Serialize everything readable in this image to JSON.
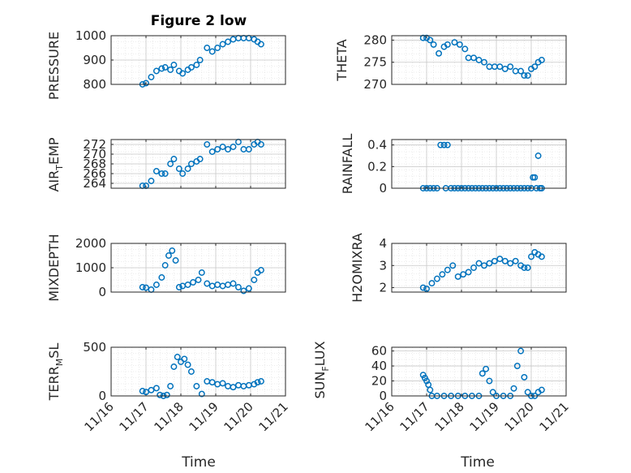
{
  "colors": {
    "marker": "#0072BD",
    "axes": "#262626",
    "grid": "#dcdcdc",
    "background": "#ffffff"
  },
  "chart_data": [
    {
      "type": "scatter",
      "title": "Figure 2 low",
      "ylabel": "PRESSURE",
      "xlabel": "",
      "xlim": [
        "11/16",
        "11/21"
      ],
      "ylim": [
        800,
        1000
      ],
      "yticks": [
        800,
        900,
        1000
      ],
      "ytick_labels": [
        "800",
        "900",
        "1000"
      ],
      "xtick_labels": [],
      "grid": true,
      "x": [
        0.9,
        1.0,
        1.15,
        1.3,
        1.45,
        1.55,
        1.7,
        1.8,
        1.95,
        2.05,
        2.2,
        2.3,
        2.45,
        2.55,
        2.75,
        2.9,
        3.05,
        3.2,
        3.35,
        3.5,
        3.65,
        3.8,
        3.95,
        4.1,
        4.2,
        4.3
      ],
      "series": [
        {
          "values": [
            800,
            805,
            830,
            855,
            865,
            870,
            860,
            880,
            855,
            845,
            860,
            870,
            880,
            900,
            950,
            935,
            950,
            965,
            975,
            985,
            990,
            990,
            990,
            985,
            975,
            965
          ]
        }
      ]
    },
    {
      "type": "scatter",
      "title": "",
      "ylabel": "THETA",
      "xlabel": "",
      "xlim": [
        "11/16",
        "11/21"
      ],
      "ylim": [
        270,
        281
      ],
      "yticks": [
        270,
        275,
        280
      ],
      "ytick_labels": [
        "270",
        "275",
        "280"
      ],
      "xtick_labels": [],
      "grid": true,
      "x": [
        0.9,
        1.0,
        1.1,
        1.2,
        1.35,
        1.5,
        1.6,
        1.8,
        1.95,
        2.1,
        2.2,
        2.35,
        2.5,
        2.65,
        2.8,
        2.95,
        3.1,
        3.25,
        3.4,
        3.55,
        3.7,
        3.8,
        3.9,
        4.0,
        4.1,
        4.2,
        4.3
      ],
      "series": [
        {
          "values": [
            280.5,
            280.5,
            280,
            279,
            277,
            278.5,
            279,
            279.5,
            279,
            278,
            276,
            276,
            275.5,
            275,
            274,
            274,
            274,
            273.5,
            274,
            273,
            273,
            272,
            272,
            273.5,
            274,
            275,
            275.5
          ]
        }
      ]
    },
    {
      "type": "scatter",
      "title": "",
      "ylabel": "AIR_TEMP",
      "xlabel": "",
      "xlim": [
        "11/16",
        "11/21"
      ],
      "ylim": [
        263,
        273
      ],
      "yticks": [
        264,
        266,
        268,
        270,
        272
      ],
      "ytick_labels": [
        "264",
        "266",
        "268",
        "270",
        "272"
      ],
      "xtick_labels": [],
      "grid": true,
      "x": [
        0.9,
        1.0,
        1.15,
        1.3,
        1.45,
        1.55,
        1.7,
        1.8,
        1.95,
        2.05,
        2.2,
        2.3,
        2.45,
        2.55,
        2.75,
        2.9,
        3.05,
        3.2,
        3.35,
        3.5,
        3.65,
        3.8,
        3.95,
        4.1,
        4.2,
        4.3
      ],
      "series": [
        {
          "values": [
            263.5,
            263.5,
            264.5,
            266.5,
            266,
            266,
            268,
            269,
            267,
            266,
            267,
            268,
            268.5,
            269,
            272,
            270.5,
            271,
            271.5,
            271,
            271.5,
            272.5,
            271,
            271,
            272,
            272.5,
            272
          ]
        }
      ]
    },
    {
      "type": "scatter",
      "title": "",
      "ylabel": "RAINFALL",
      "xlabel": "",
      "xlim": [
        "11/16",
        "11/21"
      ],
      "ylim": [
        0,
        0.45
      ],
      "yticks": [
        0,
        0.2,
        0.4
      ],
      "ytick_labels": [
        "0",
        "0.2",
        "0.4"
      ],
      "xtick_labels": [],
      "grid": true,
      "x": [
        0.9,
        1.0,
        1.1,
        1.2,
        1.3,
        1.4,
        1.5,
        1.55,
        1.6,
        1.7,
        1.8,
        1.9,
        2.0,
        2.1,
        2.2,
        2.3,
        2.4,
        2.5,
        2.6,
        2.7,
        2.8,
        2.9,
        3.0,
        3.1,
        3.2,
        3.3,
        3.4,
        3.5,
        3.6,
        3.7,
        3.8,
        3.9,
        4.0,
        4.05,
        4.1,
        4.15,
        4.2,
        4.25,
        4.3
      ],
      "series": [
        {
          "values": [
            0,
            0,
            0,
            0,
            0,
            0.4,
            0.4,
            0,
            0.4,
            0,
            0,
            0,
            0,
            0,
            0,
            0,
            0,
            0,
            0,
            0,
            0,
            0,
            0,
            0,
            0,
            0,
            0,
            0,
            0,
            0,
            0,
            0,
            0,
            0.1,
            0.1,
            0,
            0.3,
            0,
            0
          ]
        }
      ]
    },
    {
      "type": "scatter",
      "title": "",
      "ylabel": "MIXDEPTH",
      "xlabel": "",
      "xlim": [
        "11/16",
        "11/21"
      ],
      "ylim": [
        0,
        2000
      ],
      "yticks": [
        0,
        1000,
        2000
      ],
      "ytick_labels": [
        "0",
        "1000",
        "2000"
      ],
      "xtick_labels": [],
      "grid": true,
      "x": [
        0.9,
        1.0,
        1.15,
        1.3,
        1.45,
        1.55,
        1.65,
        1.75,
        1.85,
        1.95,
        2.05,
        2.2,
        2.35,
        2.5,
        2.6,
        2.75,
        2.9,
        3.05,
        3.2,
        3.35,
        3.5,
        3.65,
        3.8,
        3.95,
        4.1,
        4.2,
        4.3
      ],
      "series": [
        {
          "values": [
            200,
            180,
            100,
            300,
            600,
            1100,
            1500,
            1700,
            1300,
            200,
            250,
            300,
            400,
            500,
            800,
            350,
            250,
            300,
            250,
            300,
            350,
            200,
            50,
            150,
            500,
            800,
            900
          ]
        }
      ]
    },
    {
      "type": "scatter",
      "title": "",
      "ylabel": "H2OMIXRA",
      "xlabel": "",
      "xlim": [
        "11/16",
        "11/21"
      ],
      "ylim": [
        1.8,
        4
      ],
      "yticks": [
        2,
        3,
        4
      ],
      "ytick_labels": [
        "2",
        "3",
        "4"
      ],
      "xtick_labels": [],
      "grid": true,
      "x": [
        0.9,
        1.0,
        1.15,
        1.3,
        1.45,
        1.6,
        1.75,
        1.9,
        2.05,
        2.2,
        2.35,
        2.5,
        2.65,
        2.8,
        2.95,
        3.1,
        3.25,
        3.4,
        3.55,
        3.7,
        3.8,
        3.9,
        4.0,
        4.1,
        4.2,
        4.3
      ],
      "series": [
        {
          "values": [
            2.0,
            1.95,
            2.2,
            2.4,
            2.6,
            2.8,
            3.0,
            2.5,
            2.6,
            2.7,
            2.9,
            3.1,
            3.0,
            3.1,
            3.2,
            3.3,
            3.2,
            3.1,
            3.2,
            3.0,
            2.9,
            2.9,
            3.4,
            3.6,
            3.5,
            3.4
          ]
        }
      ]
    },
    {
      "type": "scatter",
      "title": "",
      "ylabel": "TERR_MSL",
      "xlabel": "Time",
      "xlim": [
        "11/16",
        "11/21"
      ],
      "ylim": [
        0,
        500
      ],
      "yticks": [
        0,
        500
      ],
      "ytick_labels": [
        "0",
        "500"
      ],
      "xticks": [
        0,
        1,
        2,
        3,
        4,
        5
      ],
      "xtick_labels": [
        "11/16",
        "11/17",
        "11/18",
        "11/19",
        "11/20",
        "11/21"
      ],
      "grid": true,
      "x": [
        0.9,
        1.0,
        1.15,
        1.3,
        1.4,
        1.5,
        1.6,
        1.7,
        1.8,
        1.9,
        2.0,
        2.1,
        2.2,
        2.3,
        2.45,
        2.6,
        2.75,
        2.9,
        3.05,
        3.2,
        3.35,
        3.5,
        3.65,
        3.8,
        3.95,
        4.1,
        4.2,
        4.3
      ],
      "series": [
        {
          "values": [
            50,
            40,
            60,
            80,
            10,
            0,
            10,
            100,
            300,
            400,
            350,
            380,
            320,
            250,
            100,
            20,
            150,
            140,
            120,
            130,
            100,
            90,
            110,
            100,
            110,
            120,
            140,
            150
          ]
        }
      ]
    },
    {
      "type": "scatter",
      "title": "",
      "ylabel": "SUN_FLUX",
      "xlabel": "Time",
      "xlim": [
        "11/16",
        "11/21"
      ],
      "ylim": [
        0,
        65
      ],
      "yticks": [
        0,
        20,
        40,
        60
      ],
      "ytick_labels": [
        "0",
        "20",
        "40",
        "60"
      ],
      "xticks": [
        0,
        1,
        2,
        3,
        4,
        5
      ],
      "xtick_labels": [
        "11/16",
        "11/17",
        "11/18",
        "11/19",
        "11/20",
        "11/21"
      ],
      "grid": true,
      "x": [
        0.9,
        0.95,
        1.0,
        1.05,
        1.1,
        1.15,
        1.3,
        1.5,
        1.7,
        1.9,
        2.1,
        2.3,
        2.5,
        2.6,
        2.7,
        2.8,
        2.9,
        3.0,
        3.2,
        3.4,
        3.5,
        3.6,
        3.7,
        3.8,
        3.9,
        4.0,
        4.1,
        4.2,
        4.3
      ],
      "series": [
        {
          "values": [
            28,
            24,
            20,
            15,
            8,
            0,
            0,
            0,
            0,
            0,
            0,
            0,
            0,
            30,
            36,
            20,
            5,
            0,
            0,
            0,
            10,
            40,
            60,
            25,
            5,
            0,
            0,
            5,
            8
          ]
        }
      ]
    }
  ]
}
